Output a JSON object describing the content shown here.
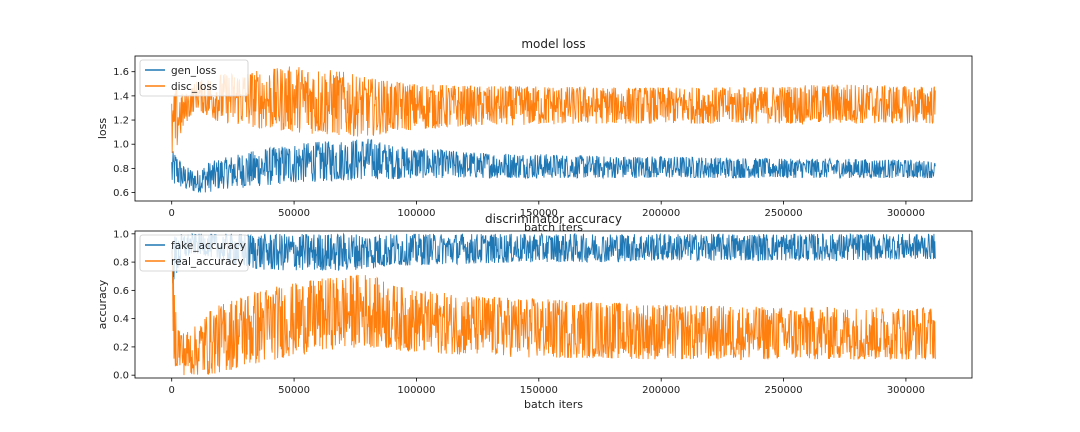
{
  "chart_data": [
    {
      "type": "line",
      "title": "model loss",
      "xlabel": "batch iters",
      "ylabel": "loss",
      "xlim": [
        -15000,
        327000
      ],
      "ylim": [
        0.53,
        1.73
      ],
      "xticks": [
        0,
        50000,
        100000,
        150000,
        200000,
        250000,
        300000
      ],
      "yticks": [
        0.6,
        0.8,
        1.0,
        1.2,
        1.4,
        1.6
      ],
      "ytick_labels": [
        "0.6",
        "0.8",
        "1.0",
        "1.2",
        "1.4",
        "1.6"
      ],
      "legend_position": "upper-left",
      "grid": false,
      "series": [
        {
          "name": "gen_loss",
          "color": "#1f77b4",
          "x": [
            0,
            2000,
            5000,
            10000,
            15000,
            20000,
            30000,
            40000,
            50000,
            60000,
            70000,
            80000,
            90000,
            100000,
            125000,
            150000,
            175000,
            200000,
            225000,
            250000,
            275000,
            300000,
            312000
          ],
          "low": [
            0.62,
            0.66,
            0.62,
            0.6,
            0.6,
            0.63,
            0.64,
            0.66,
            0.68,
            0.69,
            0.7,
            0.71,
            0.71,
            0.72,
            0.72,
            0.72,
            0.72,
            0.72,
            0.72,
            0.72,
            0.72,
            0.72,
            0.72
          ],
          "high": [
            0.95,
            0.92,
            0.82,
            0.78,
            0.85,
            0.88,
            0.93,
            0.97,
            1.0,
            1.02,
            1.03,
            1.05,
            0.99,
            0.97,
            0.93,
            0.92,
            0.9,
            0.9,
            0.89,
            0.88,
            0.88,
            0.87,
            0.86
          ]
        },
        {
          "name": "disc_loss",
          "color": "#ff7f0e",
          "x": [
            0,
            2000,
            5000,
            10000,
            15000,
            20000,
            30000,
            40000,
            50000,
            60000,
            70000,
            80000,
            90000,
            100000,
            125000,
            150000,
            175000,
            200000,
            225000,
            250000,
            275000,
            300000,
            312000
          ],
          "low": [
            0.85,
            0.95,
            1.15,
            1.3,
            1.22,
            1.18,
            1.15,
            1.12,
            1.1,
            1.08,
            1.07,
            1.06,
            1.1,
            1.12,
            1.15,
            1.16,
            1.17,
            1.17,
            1.17,
            1.17,
            1.17,
            1.17,
            1.17
          ],
          "high": [
            1.35,
            1.48,
            1.4,
            1.52,
            1.55,
            1.58,
            1.6,
            1.62,
            1.65,
            1.63,
            1.6,
            1.55,
            1.52,
            1.5,
            1.48,
            1.48,
            1.47,
            1.47,
            1.47,
            1.48,
            1.5,
            1.48,
            1.48
          ]
        }
      ]
    },
    {
      "type": "line",
      "title": "discriminator accuracy",
      "xlabel": "batch iters",
      "ylabel": "accuracy",
      "xlim": [
        -15000,
        327000
      ],
      "ylim": [
        -0.02,
        1.02
      ],
      "xticks": [
        0,
        50000,
        100000,
        150000,
        200000,
        250000,
        300000
      ],
      "yticks": [
        0.0,
        0.2,
        0.4,
        0.6,
        0.8,
        1.0
      ],
      "ytick_labels": [
        "0.0",
        "0.2",
        "0.4",
        "0.6",
        "0.8",
        "1.0"
      ],
      "legend_position": "upper-left",
      "grid": false,
      "series": [
        {
          "name": "fake_accuracy",
          "color": "#1f77b4",
          "x": [
            0,
            2000,
            5000,
            10000,
            15000,
            20000,
            30000,
            40000,
            50000,
            60000,
            70000,
            80000,
            90000,
            100000,
            125000,
            150000,
            175000,
            200000,
            225000,
            250000,
            275000,
            300000,
            312000
          ],
          "low": [
            0.62,
            0.7,
            0.82,
            0.86,
            0.84,
            0.8,
            0.76,
            0.74,
            0.74,
            0.74,
            0.74,
            0.75,
            0.77,
            0.78,
            0.79,
            0.8,
            0.8,
            0.81,
            0.81,
            0.81,
            0.81,
            0.82,
            0.82
          ],
          "high": [
            0.98,
            0.99,
            1.0,
            1.0,
            1.0,
            1.0,
            1.0,
            1.0,
            1.0,
            1.0,
            1.0,
            1.0,
            1.0,
            1.0,
            1.0,
            1.0,
            1.0,
            1.0,
            1.0,
            1.0,
            1.0,
            1.0,
            1.0
          ]
        },
        {
          "name": "real_accuracy",
          "color": "#ff7f0e",
          "x": [
            0,
            2000,
            5000,
            10000,
            15000,
            20000,
            30000,
            40000,
            50000,
            60000,
            70000,
            80000,
            90000,
            100000,
            125000,
            150000,
            175000,
            200000,
            225000,
            250000,
            275000,
            300000,
            312000
          ],
          "low": [
            0.1,
            0.05,
            0.0,
            0.0,
            0.0,
            0.02,
            0.06,
            0.1,
            0.14,
            0.17,
            0.19,
            0.2,
            0.18,
            0.16,
            0.14,
            0.12,
            0.12,
            0.11,
            0.11,
            0.11,
            0.11,
            0.11,
            0.11
          ],
          "high": [
            0.9,
            0.4,
            0.3,
            0.35,
            0.45,
            0.5,
            0.58,
            0.62,
            0.65,
            0.68,
            0.7,
            0.72,
            0.64,
            0.6,
            0.56,
            0.54,
            0.52,
            0.5,
            0.49,
            0.48,
            0.48,
            0.48,
            0.48
          ]
        }
      ]
    }
  ]
}
